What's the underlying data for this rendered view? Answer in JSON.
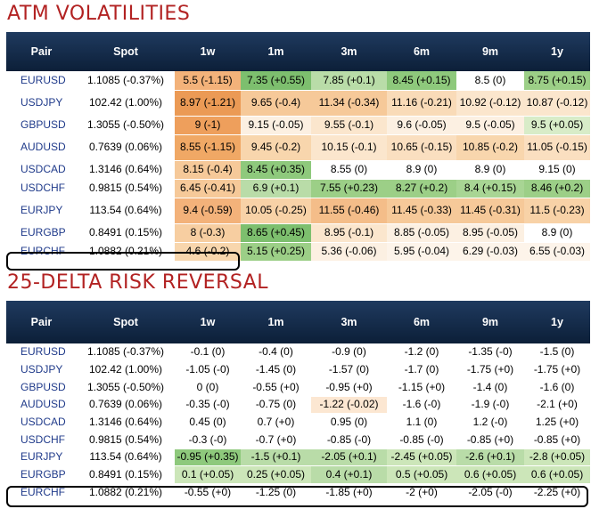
{
  "atm": {
    "title": "ATM VOLATILITIES",
    "headers": [
      "Pair",
      "Spot",
      "1w",
      "1m",
      "3m",
      "6m",
      "9m",
      "1y"
    ],
    "rows": [
      {
        "pair": "EURUSD",
        "spot": "1.1085 (-0.37%)",
        "cells": [
          "5.5 (-1.15)",
          "7.35 (+0.55)",
          "7.85 (+0.1)",
          "8.45 (+0.15)",
          "8.5 (0)",
          "8.75 (+0.15)"
        ],
        "colors": [
          "#f3b27a",
          "#7dbf6e",
          "#b9dca8",
          "#8ec97c",
          "#ffffff",
          "#9ccf87"
        ]
      },
      {
        "pair": "USDJPY",
        "spot": "102.42 (1.00%)",
        "cells": [
          "8.97 (-1.21)",
          "9.65 (-0.4)",
          "11.34 (-0.34)",
          "11.16 (-0.21)",
          "10.92 (-0.12)",
          "10.87 (-0.12)"
        ],
        "colors": [
          "#eb9a55",
          "#f6c999",
          "#f6c999",
          "#f9dbb8",
          "#fbe6cd",
          "#fbe6cd"
        ]
      },
      {
        "pair": "GBPUSD",
        "spot": "1.3055 (-0.50%)",
        "cells": [
          "9 (-1)",
          "9.15 (-0.05)",
          "9.55 (-0.1)",
          "9.6 (-0.05)",
          "9.5 (-0.05)",
          "9.5 (+0.05)"
        ],
        "colors": [
          "#ee9f5c",
          "#fcf0e2",
          "#fbe6cd",
          "#fcf0e2",
          "#fcf0e2",
          "#d8ecc8"
        ]
      },
      {
        "pair": "AUDUSD",
        "spot": "0.7639 (0.06%)",
        "cells": [
          "8.55 (-1.15)",
          "9.45 (-0.2)",
          "10.15 (-0.1)",
          "10.65 (-0.15)",
          "10.85 (-0.2)",
          "11.05 (-0.15)"
        ],
        "colors": [
          "#f0a865",
          "#f8d6ad",
          "#fbe6cd",
          "#fadfc0",
          "#f8d6ad",
          "#fadfc0"
        ]
      },
      {
        "pair": "USDCAD",
        "spot": "1.3146 (0.64%)",
        "cells": [
          "8.15 (-0.4)",
          "8.45 (+0.35)",
          "8.55 (0)",
          "8.9 (0)",
          "8.9 (0)",
          "9.15 (0)"
        ],
        "colors": [
          "#f6c999",
          "#8ec97c",
          "#ffffff",
          "#ffffff",
          "#ffffff",
          "#ffffff"
        ]
      },
      {
        "pair": "USDCHF",
        "spot": "0.9815 (0.54%)",
        "cells": [
          "6.45 (-0.41)",
          "6.9 (+0.1)",
          "7.55 (+0.23)",
          "8.27 (+0.2)",
          "8.4 (+0.15)",
          "8.46 (+0.2)"
        ],
        "colors": [
          "#f6c999",
          "#b9dca8",
          "#9ccf87",
          "#9ccf87",
          "#a8d594",
          "#9ccf87"
        ]
      },
      {
        "pair": "EURJPY",
        "spot": "113.54 (0.64%)",
        "cells": [
          "9.4 (-0.59)",
          "10.05 (-0.25)",
          "11.55 (-0.46)",
          "11.45 (-0.33)",
          "11.45 (-0.31)",
          "11.5 (-0.23)"
        ],
        "colors": [
          "#f3b27a",
          "#f8d2a7",
          "#f4bd89",
          "#f6c999",
          "#f6c999",
          "#f8d2a7"
        ]
      },
      {
        "pair": "EURGBP",
        "spot": "0.8491 (0.15%)",
        "cells": [
          "8 (-0.3)",
          "8.65 (+0.45)",
          "8.95 (-0.1)",
          "8.85 (-0.05)",
          "8.95 (-0.05)",
          "8.9 (0)"
        ],
        "colors": [
          "#f7cea1",
          "#7dbf6e",
          "#fbe6cd",
          "#fcf0e2",
          "#fcf0e2",
          "#ffffff"
        ]
      },
      {
        "pair": "EURCHF",
        "spot": "1.0882 (0.21%)",
        "cells": [
          "4.6 (-0.2)",
          "5.15 (+0.25)",
          "5.36 (-0.06)",
          "5.95 (-0.04)",
          "6.29 (-0.03)",
          "6.55 (-0.03)"
        ],
        "colors": [
          "#f8d6ad",
          "#9ccf87",
          "#fcf0e2",
          "#fdf4ea",
          "#fdf4ea",
          "#fdf4ea"
        ]
      }
    ]
  },
  "rr": {
    "title": "25-DELTA RISK REVERSAL",
    "headers": [
      "Pair",
      "Spot",
      "1w",
      "1m",
      "3m",
      "6m",
      "9m",
      "1y"
    ],
    "rows": [
      {
        "pair": "EURUSD",
        "spot": "1.1085 (-0.37%)",
        "cells": [
          "-0.1 (0)",
          "-0.4 (0)",
          "-0.9 (0)",
          "-1.2 (0)",
          "-1.35 (-0)",
          "-1.5 (0)"
        ],
        "colors": [
          "#ffffff",
          "#ffffff",
          "#ffffff",
          "#ffffff",
          "#ffffff",
          "#ffffff"
        ]
      },
      {
        "pair": "USDJPY",
        "spot": "102.42 (1.00%)",
        "cells": [
          "-1.05 (-0)",
          "-1.45 (0)",
          "-1.57 (0)",
          "-1.7 (0)",
          "-1.75 (+0)",
          "-1.75 (+0)"
        ],
        "colors": [
          "#ffffff",
          "#ffffff",
          "#ffffff",
          "#ffffff",
          "#ffffff",
          "#ffffff"
        ]
      },
      {
        "pair": "GBPUSD",
        "spot": "1.3055 (-0.50%)",
        "cells": [
          "0 (0)",
          "-0.55 (+0)",
          "-0.95 (+0)",
          "-1.15 (+0)",
          "-1.4 (0)",
          "-1.6 (0)"
        ],
        "colors": [
          "#ffffff",
          "#ffffff",
          "#ffffff",
          "#ffffff",
          "#ffffff",
          "#ffffff"
        ]
      },
      {
        "pair": "AUDUSD",
        "spot": "0.7639 (0.06%)",
        "cells": [
          "-0.35 (-0)",
          "-0.75 (0)",
          "-1.22 (-0.02)",
          "-1.6 (-0)",
          "-1.9 (-0)",
          "-2.1 (+0)"
        ],
        "colors": [
          "#ffffff",
          "#ffffff",
          "#fce7d2",
          "#ffffff",
          "#ffffff",
          "#ffffff"
        ]
      },
      {
        "pair": "USDCAD",
        "spot": "1.3146 (0.64%)",
        "cells": [
          "0.45 (0)",
          "0.7 (+0)",
          "0.95 (0)",
          "1.1 (0)",
          "1.2 (-0)",
          "1.25 (+0)"
        ],
        "colors": [
          "#ffffff",
          "#ffffff",
          "#ffffff",
          "#ffffff",
          "#ffffff",
          "#ffffff"
        ]
      },
      {
        "pair": "USDCHF",
        "spot": "0.9815 (0.54%)",
        "cells": [
          "-0.3 (-0)",
          "-0.7 (+0)",
          "-0.85 (-0)",
          "-0.85 (-0)",
          "-0.85 (+0)",
          "-0.85 (+0)"
        ],
        "colors": [
          "#ffffff",
          "#ffffff",
          "#ffffff",
          "#ffffff",
          "#ffffff",
          "#ffffff"
        ]
      },
      {
        "pair": "EURJPY",
        "spot": "113.54 (0.64%)",
        "cells": [
          "-0.95 (+0.35)",
          "-1.5 (+0.1)",
          "-2.05 (+0.1)",
          "-2.45 (+0.05)",
          "-2.6 (+0.1)",
          "-2.8 (+0.05)"
        ],
        "colors": [
          "#8ec97c",
          "#b9dca8",
          "#b9dca8",
          "#cce6b9",
          "#b9dca8",
          "#cce6b9"
        ]
      },
      {
        "pair": "EURGBP",
        "spot": "0.8491 (0.15%)",
        "cells": [
          "0.1 (+0.05)",
          "0.25 (+0.05)",
          "0.4 (+0.1)",
          "0.5 (+0.05)",
          "0.6 (+0.05)",
          "0.6 (+0.05)"
        ],
        "colors": [
          "#cce6b9",
          "#cce6b9",
          "#b9dca8",
          "#cce6b9",
          "#cce6b9",
          "#cce6b9"
        ]
      },
      {
        "pair": "EURCHF",
        "spot": "1.0882 (0.21%)",
        "cells": [
          "-0.55 (+0)",
          "-1.25 (0)",
          "-1.85 (+0)",
          "-2 (+0)",
          "-2.05 (-0)",
          "-2.25 (+0)"
        ],
        "colors": [
          "#ffffff",
          "#ffffff",
          "#ffffff",
          "#ffffff",
          "#ffffff",
          "#ffffff"
        ]
      }
    ]
  }
}
